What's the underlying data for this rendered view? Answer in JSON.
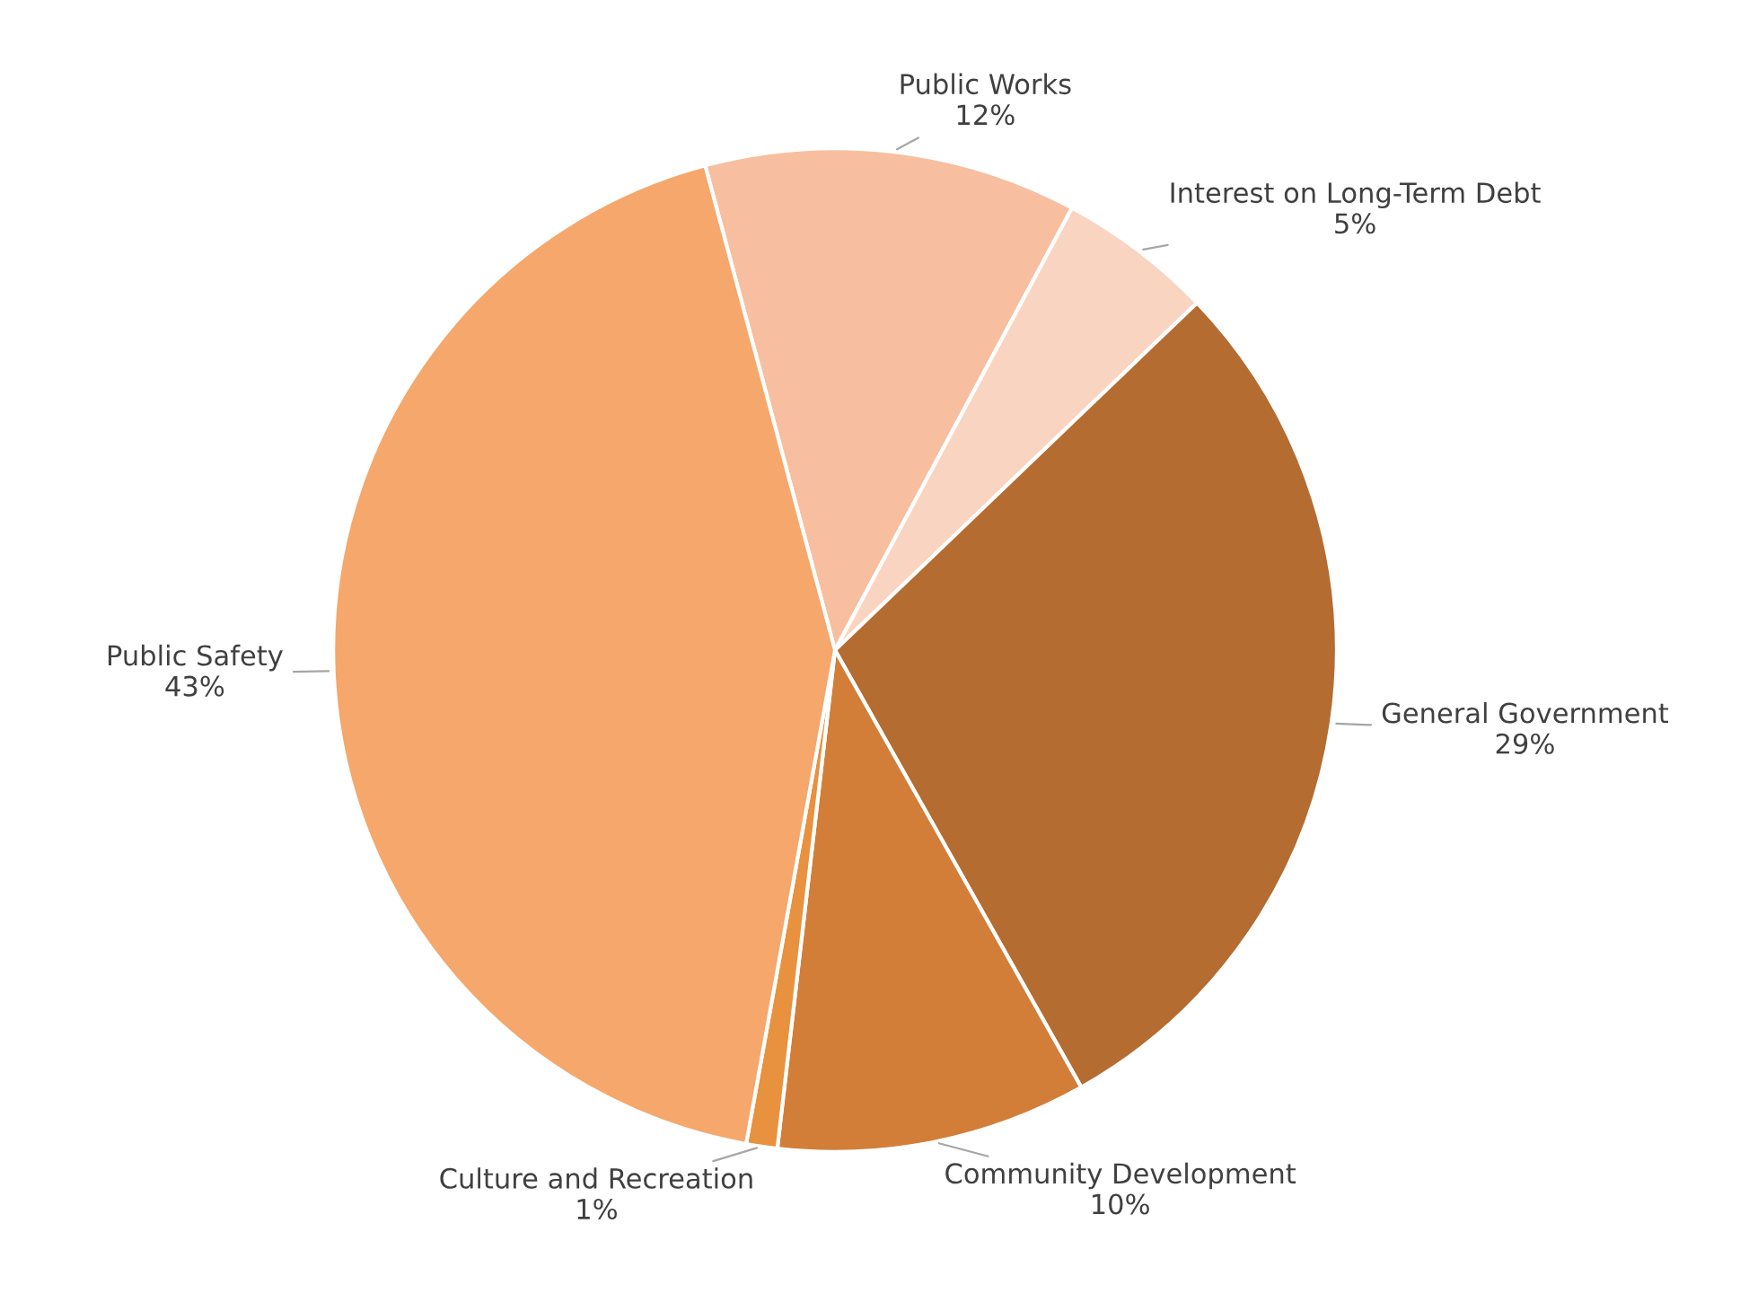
{
  "chart_data": {
    "type": "pie",
    "categories": [
      "Public Works",
      "Interest on Long-Term Debt",
      "General Government",
      "Community Development",
      "Culture and Recreation",
      "Public Safety"
    ],
    "values": [
      12,
      5,
      29,
      10,
      1,
      43
    ],
    "value_labels": [
      "12%",
      "5%",
      "29%",
      "10%",
      "1%",
      "43%"
    ],
    "colors": [
      "#f7bf9f",
      "#f9d5c1",
      "#b46c31",
      "#d27e39",
      "#e8913e",
      "#f5a76c"
    ],
    "legend": false
  }
}
